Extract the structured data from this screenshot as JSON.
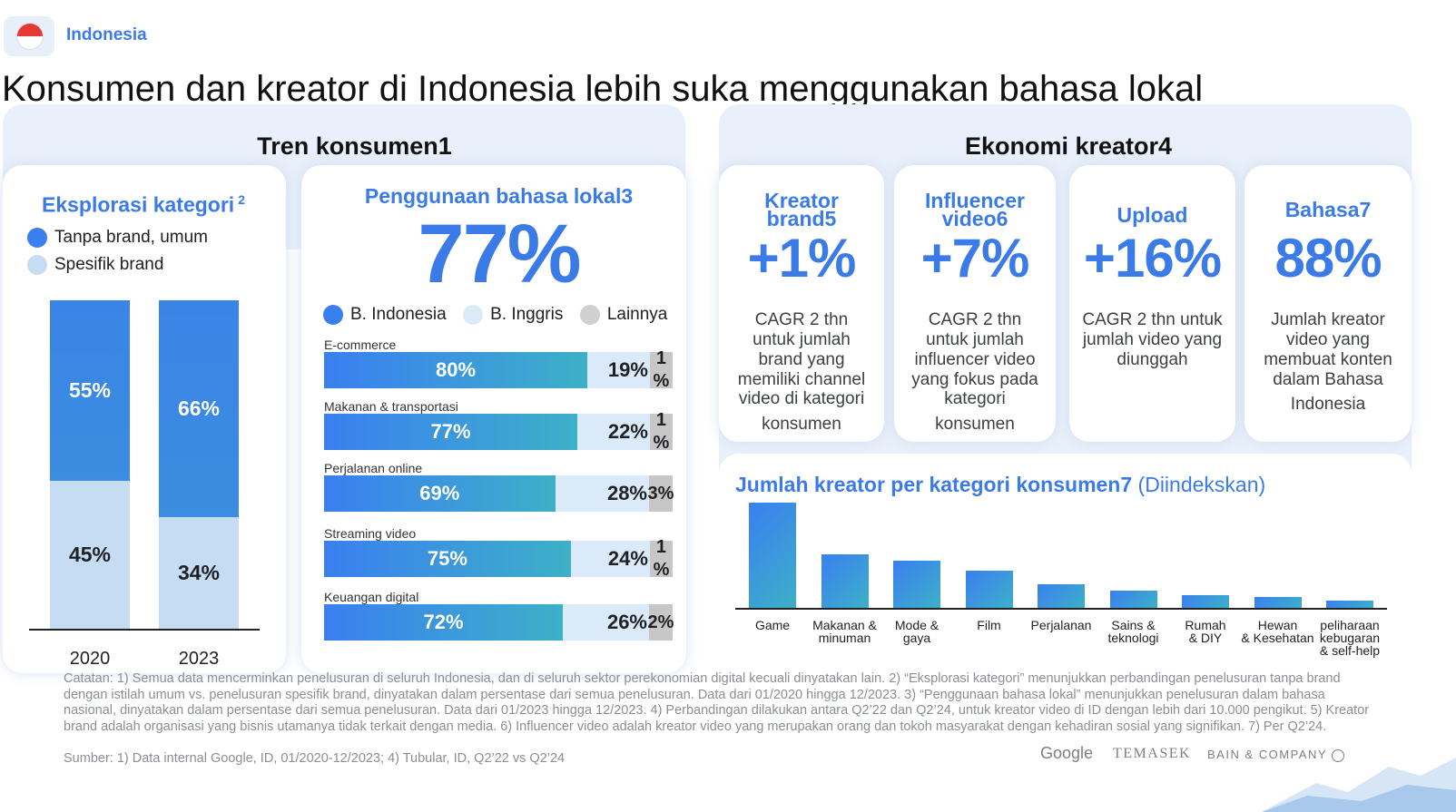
{
  "header": {
    "country": "Indonesia",
    "title": "Konsumen dan kreator di Indonesia lebih suka menggunakan bahasa lokal"
  },
  "consumer": {
    "section_title": "Tren konsumen1",
    "exploration": {
      "title": "Eksplorasi kategori",
      "superscript": "2",
      "legend": [
        "Tanpa brand, umum",
        "Spesifik brand"
      ]
    },
    "language": {
      "title": "Penggunaan bahasa lokal3",
      "big_value": "77%",
      "legend": [
        "B. Indonesia",
        "B. Inggris",
        "Lainnya"
      ]
    }
  },
  "creator": {
    "section_title": "Ekonomi kreator4",
    "kpis": [
      {
        "title_line1": "Kreator",
        "title_line2": "brand5",
        "value": "+1%",
        "desc": "CAGR 2 thn untuk jumlah brand yang memiliki channel video di kategori",
        "desc_last": "konsumen"
      },
      {
        "title_line1": "Influencer",
        "title_line2": "video6",
        "value": "+7%",
        "desc": "CAGR 2 thn untuk jumlah influencer video yang fokus pada kategori",
        "desc_last": "konsumen"
      },
      {
        "title_line1": "Upload",
        "title_line2": "",
        "value": "+16%",
        "desc": "CAGR 2 thn untuk jumlah video yang diunggah",
        "desc_last": ""
      },
      {
        "title_line1": "Bahasa7",
        "title_line2": "",
        "value": "88%",
        "desc": "Jumlah kreator video yang membuat konten dalam Bahasa",
        "desc_last": "Indonesia"
      }
    ],
    "category_chart_title": "Jumlah kreator per kategori konsumen7",
    "category_chart_subtitle": "(Diindekskan)"
  },
  "chart_data": [
    {
      "type": "bar",
      "stacked": true,
      "title": "Eksplorasi kategori",
      "categories": [
        "2020",
        "2023"
      ],
      "series": [
        {
          "name": "Tanpa brand, umum",
          "values": [
            55,
            66
          ],
          "labels": [
            "55%",
            "66%"
          ],
          "color": "#3a84e6"
        },
        {
          "name": "Spesifik brand",
          "values": [
            45,
            34
          ],
          "labels": [
            "45%",
            "34%"
          ],
          "color": "#c6dcf2"
        }
      ],
      "ylim": [
        0,
        100
      ]
    },
    {
      "type": "bar",
      "orientation": "horizontal",
      "stacked": true,
      "title": "Penggunaan bahasa lokal3",
      "categories": [
        "E-commerce",
        "Makanan & transportasi",
        "Perjalanan online",
        "Streaming video",
        "Keuangan digital"
      ],
      "series": [
        {
          "name": "B. Indonesia",
          "values": [
            80,
            77,
            69,
            75,
            72
          ],
          "labels": [
            "80%",
            "77%",
            "69%",
            "75%",
            "72%"
          ],
          "color": "#3a7ff0"
        },
        {
          "name": "B. Inggris",
          "values": [
            19,
            22,
            28,
            24,
            26
          ],
          "labels": [
            "19%",
            "22%",
            "28%",
            "24%",
            "26%"
          ],
          "color": "#dbeaf8"
        },
        {
          "name": "Lainnya",
          "values": [
            1,
            1,
            3,
            1,
            2
          ],
          "labels": [
            "1\n%",
            "1\n%",
            "3%",
            "1\n%",
            "2%"
          ],
          "color": "#c7c7c7"
        }
      ],
      "xlim": [
        0,
        100
      ]
    },
    {
      "type": "bar",
      "title": "Jumlah kreator per kategori konsumen7",
      "subtitle": "(Diindekskan)",
      "categories": [
        "Game",
        "Makanan & minuman",
        "Mode & gaya",
        "Film",
        "Perjalanan",
        "Sains & teknologi",
        "Rumah & DIY",
        "Hewan & Kesehatan",
        "peliharaan kebugaran & self-help"
      ],
      "category_lines": [
        [
          "Game"
        ],
        [
          "Makanan &",
          "minuman"
        ],
        [
          "Mode &",
          "gaya"
        ],
        [
          "Film"
        ],
        [
          "Perjalanan"
        ],
        [
          "Sains &",
          "teknologi"
        ],
        [
          "Rumah",
          "& DIY"
        ],
        [
          "Hewan",
          "& Kesehatan"
        ],
        [
          "peliharaan",
          "kebugaran",
          "& self-help"
        ]
      ],
      "values": [
        100,
        51,
        45,
        35,
        22,
        16,
        12,
        10,
        7
      ],
      "ylim": [
        0,
        100
      ]
    }
  ],
  "footer": {
    "notes": "Catatan: 1) Semua data mencerminkan penelusuran di seluruh Indonesia, dan di seluruh sektor perekonomian digital kecuali dinyatakan lain. 2) “Eksplorasi kategori” menunjukkan perbandingan penelusuran tanpa brand dengan istilah umum vs. penelusuran spesifik brand, dinyatakan dalam persentase dari semua penelusuran. Data dari 01/2020 hingga 12/2023. 3) “Penggunaan bahasa lokal” menunjukkan penelusuran dalam bahasa nasional, dinyatakan dalam persentase dari semua penelusuran. Data dari 01/2023 hingga 12/2023. 4) Perbandingan dilakukan antara Q2’22 dan Q2’24, untuk kreator video di ID dengan lebih dari 10.000 pengikut. 5) Kreator brand adalah organisasi yang bisnis utamanya tidak terkait dengan media. 6) Influencer video adalah kreator video yang merupakan orang dan tokoh masyarakat dengan kehadiran sosial yang signifikan. 7) Per Q2’24.",
    "source": "Sumber: 1) Data internal Google, ID, 01/2020-12/2023; 4) Tubular, ID, Q2’22 vs Q2’24",
    "logos": [
      "Google",
      "TEMASEK",
      "BAIN & COMPANY"
    ]
  }
}
